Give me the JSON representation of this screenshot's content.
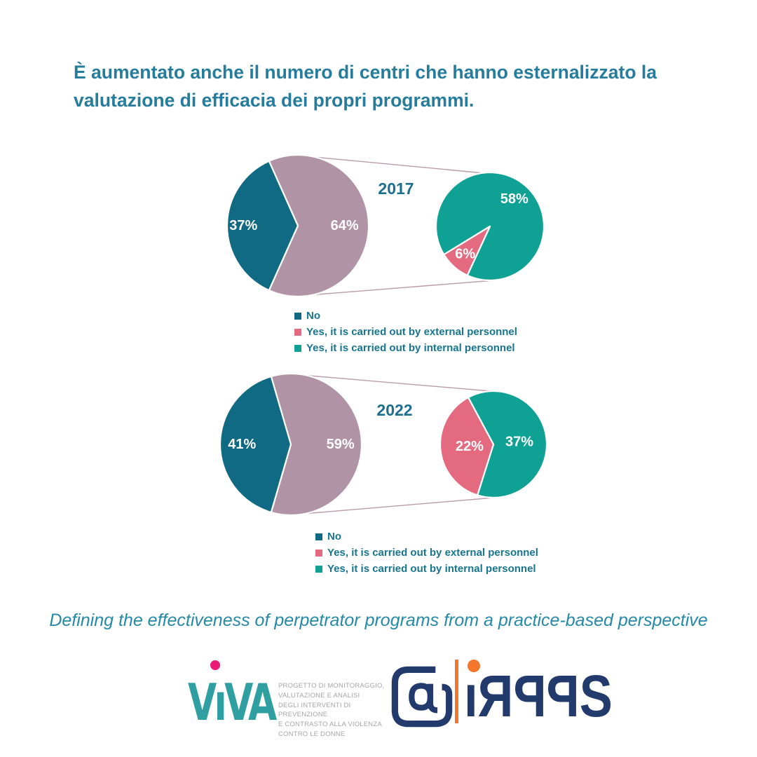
{
  "title": {
    "text": "È aumentato anche il numero di centri che hanno esternalizzato la valutazione di efficacia dei propri programmi."
  },
  "subtitle": {
    "text": "Defining the effectiveness of perpetrator programs from a practice-based perspective"
  },
  "colors": {
    "no": "#106a83",
    "yes_total": "#b094a6",
    "external": "#e46a80",
    "internal": "#10a195",
    "connector": "#bb9cae",
    "slice_label": "#ffffff",
    "title_text": "#257c9c",
    "year_text": "#1d6e8f",
    "legend_text": "#17758f",
    "navy": "#233a6d",
    "orange": "#f2762b",
    "viva_teal": "#2f9fa1",
    "viva_pink": "#ec1a77"
  },
  "legend": {
    "items": [
      {
        "label": "No",
        "color_key": "no"
      },
      {
        "label": "Yes, it is carried out by external personnel",
        "color_key": "external"
      },
      {
        "label": "Yes, it is carried out by internal personnel",
        "color_key": "internal"
      }
    ]
  },
  "chart_data": [
    {
      "type": "pie-of-pie",
      "year": "2017",
      "main_pie": {
        "slices": [
          {
            "label": "No",
            "value_pct": 37,
            "display": "37%",
            "color_key": "no"
          },
          {
            "label": "Yes (expanded in secondary pie)",
            "value_pct": 64,
            "display": "64%",
            "color_key": "yes_total"
          }
        ]
      },
      "secondary_pie": {
        "slices": [
          {
            "label": "Yes, it is carried out by external personnel",
            "value_pct": 6,
            "display": "6%",
            "color_key": "external"
          },
          {
            "label": "Yes, it is carried out by internal personnel",
            "value_pct": 58,
            "display": "58%",
            "color_key": "internal"
          }
        ]
      }
    },
    {
      "type": "pie-of-pie",
      "year": "2022",
      "main_pie": {
        "slices": [
          {
            "label": "No",
            "value_pct": 41,
            "display": "41%",
            "color_key": "no"
          },
          {
            "label": "Yes (expanded in secondary pie)",
            "value_pct": 59,
            "display": "59%",
            "color_key": "yes_total"
          }
        ]
      },
      "secondary_pie": {
        "slices": [
          {
            "label": "Yes, it is carried out by external personnel",
            "value_pct": 22,
            "display": "22%",
            "color_key": "external"
          },
          {
            "label": "Yes, it is carried out by internal personnel",
            "value_pct": 37,
            "display": "37%",
            "color_key": "internal"
          }
        ]
      }
    }
  ],
  "footer": {
    "viva_text": "VıVA",
    "viva_project_lines": [
      "PROGETTO DI MONITORAGGIO,",
      "VALUTAZIONE E ANALISI",
      "DEGLI INTERVENTI DI PREVENZIONE",
      "E CONTRASTO ALLA VIOLENZA",
      "CONTRO LE DONNE"
    ],
    "irpps_letters": [
      "ı",
      "R",
      "P",
      "P",
      "S"
    ]
  }
}
